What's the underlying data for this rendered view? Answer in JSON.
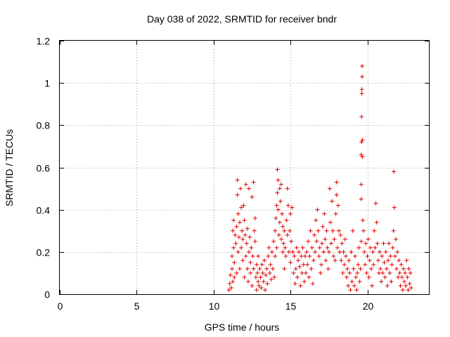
{
  "chart_data": {
    "type": "scatter",
    "title": "Day 038 of 2022, SRMTID for receiver bndr",
    "xlabel": "GPS time / hours",
    "ylabel": "SRMTID / TECUs",
    "xlim": [
      0,
      24
    ],
    "ylim": [
      0,
      1.2
    ],
    "x_ticks": [
      0,
      5,
      10,
      15,
      20
    ],
    "x_tick_labels": [
      "0",
      "5",
      "10",
      "15",
      "20"
    ],
    "y_ticks": [
      0,
      0.2,
      0.4,
      0.6,
      0.8,
      1.0,
      1.2
    ],
    "y_tick_labels": [
      "0",
      "0.2",
      "0.4",
      "0.6",
      "0.8",
      "1",
      "1.2"
    ],
    "grid": true,
    "marker": "+",
    "color": "#e00000",
    "series": [
      {
        "name": "SRMTID",
        "points": [
          [
            11.0,
            0.02
          ],
          [
            11.05,
            0.05
          ],
          [
            11.1,
            0.09
          ],
          [
            11.15,
            0.03
          ],
          [
            11.2,
            0.12
          ],
          [
            11.2,
            0.18
          ],
          [
            11.25,
            0.3
          ],
          [
            11.25,
            0.06
          ],
          [
            11.3,
            0.35
          ],
          [
            11.3,
            0.22
          ],
          [
            11.35,
            0.15
          ],
          [
            11.35,
            0.08
          ],
          [
            11.4,
            0.28
          ],
          [
            11.45,
            0.24
          ],
          [
            11.5,
            0.32
          ],
          [
            11.5,
            0.1
          ],
          [
            11.55,
            0.54
          ],
          [
            11.55,
            0.47
          ],
          [
            11.6,
            0.38
          ],
          [
            11.6,
            0.2
          ],
          [
            11.65,
            0.27
          ],
          [
            11.7,
            0.12
          ],
          [
            11.7,
            0.34
          ],
          [
            11.75,
            0.5
          ],
          [
            11.8,
            0.22
          ],
          [
            11.8,
            0.41
          ],
          [
            11.85,
            0.3
          ],
          [
            11.9,
            0.16
          ],
          [
            11.9,
            0.26
          ],
          [
            11.95,
            0.42
          ],
          [
            12.0,
            0.35
          ],
          [
            12.0,
            0.08
          ],
          [
            12.05,
            0.28
          ],
          [
            12.1,
            0.52
          ],
          [
            12.1,
            0.18
          ],
          [
            12.15,
            0.24
          ],
          [
            12.2,
            0.12
          ],
          [
            12.2,
            0.31
          ],
          [
            12.25,
            0.06
          ],
          [
            12.3,
            0.2
          ],
          [
            12.3,
            0.5
          ],
          [
            12.35,
            0.27
          ],
          [
            12.4,
            0.1
          ],
          [
            12.4,
            0.15
          ],
          [
            12.45,
            0.22
          ],
          [
            12.5,
            0.04
          ],
          [
            12.5,
            0.46
          ],
          [
            12.55,
            0.18
          ],
          [
            12.6,
            0.12
          ],
          [
            12.6,
            0.53
          ],
          [
            12.65,
            0.3
          ],
          [
            12.7,
            0.25
          ],
          [
            12.7,
            0.36
          ],
          [
            12.75,
            0.08
          ],
          [
            12.8,
            0.14
          ],
          [
            12.8,
            0.02
          ],
          [
            12.85,
            0.1
          ],
          [
            12.9,
            0.06
          ],
          [
            12.9,
            0.18
          ],
          [
            12.95,
            0.04
          ],
          [
            13.0,
            0.12
          ],
          [
            13.05,
            0.08
          ],
          [
            13.1,
            0.03
          ],
          [
            13.15,
            0.14
          ],
          [
            13.2,
            0.1
          ],
          [
            13.25,
            0.06
          ],
          [
            13.3,
            0.16
          ],
          [
            13.35,
            0.02
          ],
          [
            13.4,
            0.09
          ],
          [
            13.45,
            0.12
          ],
          [
            13.5,
            0.05
          ],
          [
            13.55,
            0.18
          ],
          [
            13.6,
            0.22
          ],
          [
            13.65,
            0.1
          ],
          [
            13.7,
            0.14
          ],
          [
            13.75,
            0.07
          ],
          [
            13.8,
            0.2
          ],
          [
            13.85,
            0.12
          ],
          [
            13.9,
            0.25
          ],
          [
            13.95,
            0.08
          ],
          [
            14.0,
            0.18
          ],
          [
            14.0,
            0.3
          ],
          [
            14.05,
            0.36
          ],
          [
            14.1,
            0.42
          ],
          [
            14.1,
            0.22
          ],
          [
            14.15,
            0.59
          ],
          [
            14.15,
            0.48
          ],
          [
            14.2,
            0.54
          ],
          [
            14.2,
            0.4
          ],
          [
            14.25,
            0.28
          ],
          [
            14.3,
            0.5
          ],
          [
            14.3,
            0.34
          ],
          [
            14.35,
            0.44
          ],
          [
            14.4,
            0.52
          ],
          [
            14.4,
            0.26
          ],
          [
            14.45,
            0.38
          ],
          [
            14.5,
            0.2
          ],
          [
            14.5,
            0.32
          ],
          [
            14.55,
            0.24
          ],
          [
            14.6,
            0.3
          ],
          [
            14.6,
            0.12
          ],
          [
            14.65,
            0.22
          ],
          [
            14.7,
            0.18
          ],
          [
            14.75,
            0.35
          ],
          [
            14.8,
            0.5
          ],
          [
            14.8,
            0.28
          ],
          [
            14.85,
            0.42
          ],
          [
            14.9,
            0.2
          ],
          [
            14.95,
            0.3
          ],
          [
            15.0,
            0.38
          ],
          [
            15.0,
            0.15
          ],
          [
            15.05,
            0.25
          ],
          [
            15.1,
            0.41
          ],
          [
            15.15,
            0.2
          ],
          [
            15.2,
            0.1
          ],
          [
            15.25,
            0.18
          ],
          [
            15.3,
            0.05
          ],
          [
            15.35,
            0.12
          ],
          [
            15.4,
            0.22
          ],
          [
            15.45,
            0.08
          ],
          [
            15.5,
            0.16
          ],
          [
            15.55,
            0.2
          ],
          [
            15.6,
            0.13
          ],
          [
            15.65,
            0.04
          ],
          [
            15.7,
            0.18
          ],
          [
            15.75,
            0.1
          ],
          [
            15.8,
            0.22
          ],
          [
            15.85,
            0.14
          ],
          [
            15.9,
            0.06
          ],
          [
            15.95,
            0.18
          ],
          [
            16.0,
            0.1
          ],
          [
            16.05,
            0.2
          ],
          [
            16.1,
            0.14
          ],
          [
            16.15,
            0.25
          ],
          [
            16.2,
            0.08
          ],
          [
            16.25,
            0.18
          ],
          [
            16.3,
            0.3
          ],
          [
            16.35,
            0.12
          ],
          [
            16.4,
            0.22
          ],
          [
            16.45,
            0.05
          ],
          [
            16.5,
            0.16
          ],
          [
            16.55,
            0.28
          ],
          [
            16.6,
            0.2
          ],
          [
            16.65,
            0.35
          ],
          [
            16.7,
            0.25
          ],
          [
            16.75,
            0.4
          ],
          [
            16.8,
            0.3
          ],
          [
            16.85,
            0.18
          ],
          [
            16.9,
            0.22
          ],
          [
            16.95,
            0.1
          ],
          [
            17.0,
            0.14
          ],
          [
            17.05,
            0.24
          ],
          [
            17.1,
            0.32
          ],
          [
            17.15,
            0.2
          ],
          [
            17.2,
            0.38
          ],
          [
            17.25,
            0.26
          ],
          [
            17.3,
            0.16
          ],
          [
            17.35,
            0.3
          ],
          [
            17.4,
            0.22
          ],
          [
            17.45,
            0.12
          ],
          [
            17.5,
            0.2
          ],
          [
            17.55,
            0.5
          ],
          [
            17.6,
            0.34
          ],
          [
            17.65,
            0.24
          ],
          [
            17.7,
            0.44
          ],
          [
            17.75,
            0.3
          ],
          [
            17.8,
            0.18
          ],
          [
            17.85,
            0.26
          ],
          [
            17.9,
            0.16
          ],
          [
            17.95,
            0.38
          ],
          [
            18.0,
            0.53
          ],
          [
            18.0,
            0.47
          ],
          [
            18.05,
            0.22
          ],
          [
            18.1,
            0.42
          ],
          [
            18.15,
            0.3
          ],
          [
            18.2,
            0.2
          ],
          [
            18.25,
            0.28
          ],
          [
            18.3,
            0.16
          ],
          [
            18.35,
            0.24
          ],
          [
            18.4,
            0.1
          ],
          [
            18.45,
            0.2
          ],
          [
            18.5,
            0.14
          ],
          [
            18.55,
            0.26
          ],
          [
            18.6,
            0.18
          ],
          [
            18.65,
            0.08
          ],
          [
            18.7,
            0.12
          ],
          [
            18.75,
            0.04
          ],
          [
            18.8,
            0.16
          ],
          [
            18.85,
            0.1
          ],
          [
            18.9,
            0.02
          ],
          [
            18.95,
            0.2
          ],
          [
            19.0,
            0.06
          ],
          [
            19.05,
            0.3
          ],
          [
            19.1,
            0.12
          ],
          [
            19.15,
            0.04
          ],
          [
            19.2,
            0.18
          ],
          [
            19.25,
            0.08
          ],
          [
            19.3,
            0.02
          ],
          [
            19.35,
            0.1
          ],
          [
            19.4,
            0.14
          ],
          [
            19.45,
            0.22
          ],
          [
            19.5,
            0.06
          ],
          [
            19.55,
            0.12
          ],
          [
            19.6,
            0.25
          ],
          [
            19.6,
            0.52
          ],
          [
            19.6,
            0.45
          ],
          [
            19.6,
            0.66
          ],
          [
            19.62,
            0.72
          ],
          [
            19.62,
            0.84
          ],
          [
            19.64,
            0.95
          ],
          [
            19.64,
            0.97
          ],
          [
            19.66,
            1.03
          ],
          [
            19.66,
            1.08
          ],
          [
            19.68,
            0.73
          ],
          [
            19.68,
            0.65
          ],
          [
            19.7,
            0.35
          ],
          [
            19.75,
            0.3
          ],
          [
            19.8,
            0.2
          ],
          [
            19.85,
            0.14
          ],
          [
            19.9,
            0.24
          ],
          [
            19.95,
            0.1
          ],
          [
            20.0,
            0.18
          ],
          [
            20.05,
            0.26
          ],
          [
            20.1,
            0.08
          ],
          [
            20.15,
            0.16
          ],
          [
            20.2,
            0.22
          ],
          [
            20.25,
            0.12
          ],
          [
            20.3,
            0.04
          ],
          [
            20.35,
            0.2
          ],
          [
            20.4,
            0.14
          ],
          [
            20.45,
            0.3
          ],
          [
            20.5,
            0.22
          ],
          [
            20.55,
            0.43
          ],
          [
            20.6,
            0.34
          ],
          [
            20.65,
            0.24
          ],
          [
            20.7,
            0.16
          ],
          [
            20.75,
            0.1
          ],
          [
            20.8,
            0.2
          ],
          [
            20.85,
            0.12
          ],
          [
            20.9,
            0.06
          ],
          [
            20.95,
            0.18
          ],
          [
            21.0,
            0.1
          ],
          [
            21.05,
            0.24
          ],
          [
            21.1,
            0.15
          ],
          [
            21.15,
            0.08
          ],
          [
            21.2,
            0.2
          ],
          [
            21.25,
            0.12
          ],
          [
            21.3,
            0.04
          ],
          [
            21.35,
            0.16
          ],
          [
            21.4,
            0.24
          ],
          [
            21.45,
            0.1
          ],
          [
            21.5,
            0.18
          ],
          [
            21.55,
            0.06
          ],
          [
            21.6,
            0.14
          ],
          [
            21.65,
            0.22
          ],
          [
            21.7,
            0.3
          ],
          [
            21.72,
            0.58
          ],
          [
            21.75,
            0.41
          ],
          [
            21.8,
            0.18
          ],
          [
            21.85,
            0.26
          ],
          [
            21.9,
            0.12
          ],
          [
            21.95,
            0.2
          ],
          [
            22.0,
            0.08
          ],
          [
            22.05,
            0.16
          ],
          [
            22.1,
            0.1
          ],
          [
            22.15,
            0.04
          ],
          [
            22.2,
            0.14
          ],
          [
            22.25,
            0.08
          ],
          [
            22.3,
            0.02
          ],
          [
            22.35,
            0.12
          ],
          [
            22.4,
            0.06
          ],
          [
            22.45,
            0.1
          ],
          [
            22.5,
            0.04
          ],
          [
            22.55,
            0.16
          ],
          [
            22.6,
            0.08
          ],
          [
            22.65,
            0.02
          ],
          [
            22.7,
            0.12
          ],
          [
            22.75,
            0.05
          ],
          [
            22.8,
            0.1
          ],
          [
            22.85,
            0.03
          ]
        ]
      }
    ]
  }
}
